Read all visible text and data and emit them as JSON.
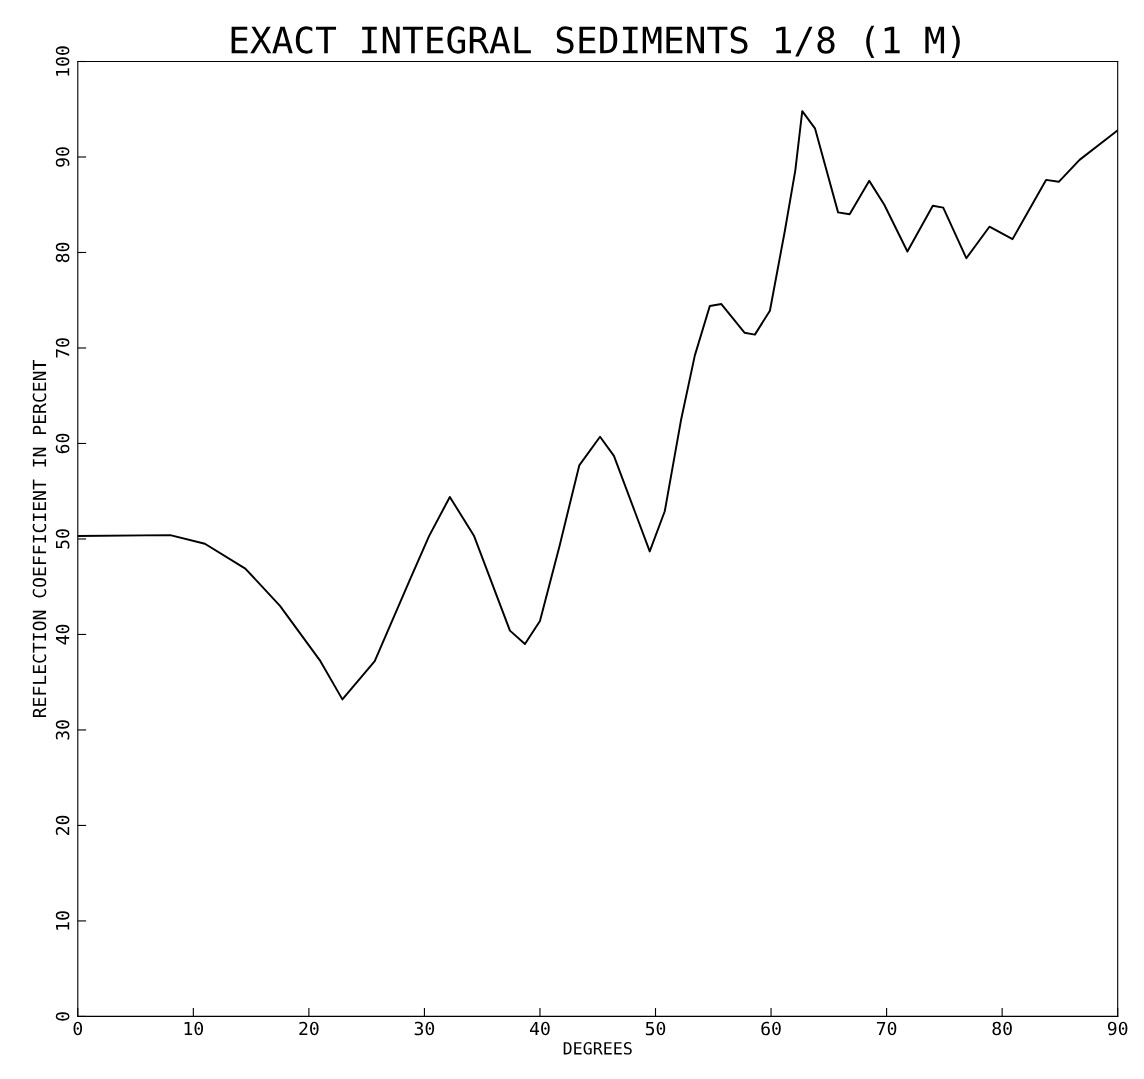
{
  "chart_data": {
    "type": "line",
    "title": "EXACT INTEGRAL SEDIMENTS 1/8 (1 M)",
    "xlabel": "DEGREES",
    "ylabel": "REFLECTION COEFFICIENT IN PERCENT",
    "x": [
      0,
      8,
      11,
      14.5,
      17.5,
      21,
      22.9,
      25.7,
      28.7,
      30.4,
      32.2,
      34.3,
      37.4,
      38.7,
      40,
      41.7,
      43.4,
      45.2,
      46.4,
      48.2,
      49.5,
      50.8,
      52.2,
      53.4,
      54.7,
      55.7,
      57.7,
      58.6,
      59.9,
      61.2,
      62.1,
      62.7,
      63.8,
      65.8,
      66.8,
      68.5,
      69.8,
      71.8,
      74.0,
      74.9,
      76.9,
      78.9,
      80.9,
      83.8,
      84.9,
      86.7,
      90
    ],
    "series": [
      {
        "color": "#000000",
        "values": [
          50.3,
          50.4,
          49.5,
          46.9,
          43.0,
          37.2,
          33.2,
          37.2,
          45.6,
          50.3,
          54.4,
          50.3,
          40.4,
          39.0,
          41.4,
          49.3,
          57.7,
          60.7,
          58.7,
          52.9,
          48.7,
          52.9,
          62.4,
          69.2,
          74.4,
          74.6,
          71.6,
          71.4,
          73.9,
          82.3,
          88.6,
          94.8,
          93.0,
          84.2,
          84.0,
          87.5,
          85.0,
          80.1,
          84.9,
          84.7,
          79.4,
          82.7,
          81.4,
          87.6,
          87.4,
          89.7,
          92.8
        ]
      }
    ],
    "xlim": [
      0,
      90
    ],
    "xticks": [
      0,
      10,
      20,
      30,
      40,
      50,
      60,
      70,
      80,
      90
    ],
    "ylim": [
      0,
      100
    ],
    "yticks": [
      0,
      10,
      20,
      30,
      40,
      50,
      60,
      70,
      80,
      90,
      100
    ],
    "grid": false,
    "legend": false,
    "marker": "none",
    "line_style": "solid"
  }
}
